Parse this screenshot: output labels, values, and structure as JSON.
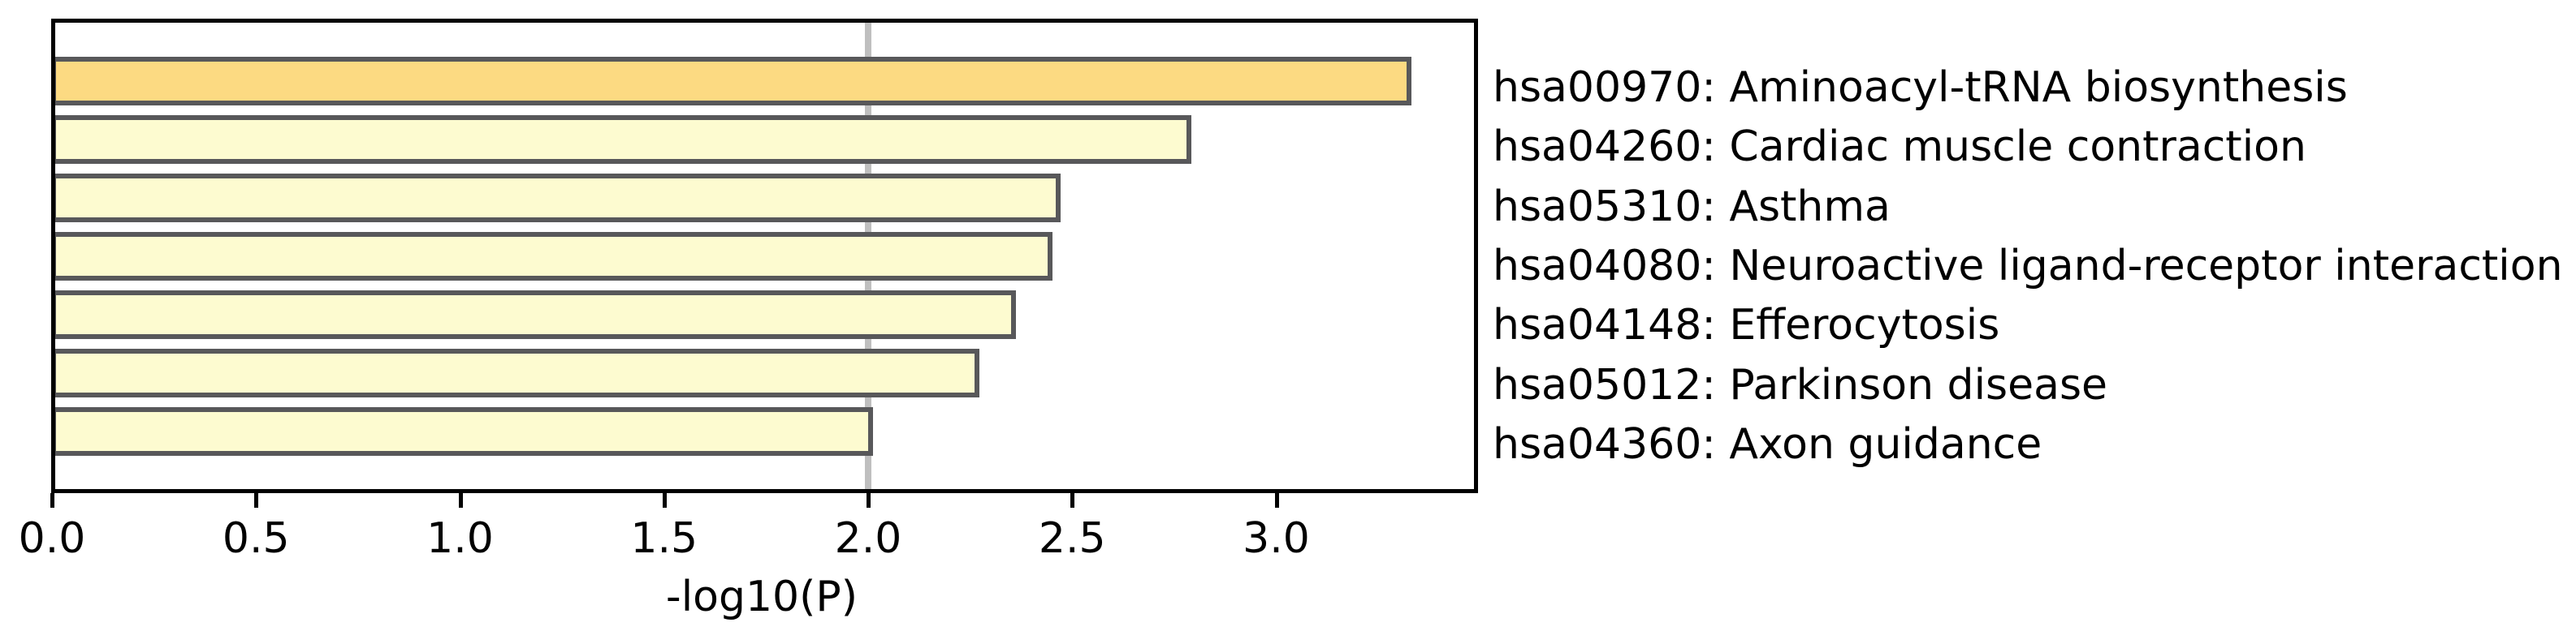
{
  "chart_data": {
    "type": "bar",
    "orientation": "horizontal",
    "title": "",
    "xlabel": "-log10(P)",
    "ylabel": "",
    "categories": [
      "hsa00970: Aminoacyl-tRNA biosynthesis",
      "hsa04260: Cardiac muscle contraction",
      "hsa05310: Asthma",
      "hsa04080: Neuroactive ligand-receptor interaction",
      "hsa04148: Efferocytosis",
      "hsa05012: Parkinson disease",
      "hsa04360: Axon guidance"
    ],
    "values": [
      3.33,
      2.79,
      2.47,
      2.45,
      2.36,
      2.27,
      2.01
    ],
    "xlim": [
      0,
      3.49
    ],
    "xticks": [
      0.0,
      0.5,
      1.0,
      1.5,
      2.0,
      2.5,
      3.0
    ],
    "xtick_labels": [
      "0.0",
      "0.5",
      "1.0",
      "1.5",
      "2.0",
      "2.5",
      "3.0"
    ],
    "threshold_line_x": 2.0,
    "grid": false,
    "legend": "none",
    "colors": {
      "highlight_bar_fill": "#fcda82",
      "bar_fill": "#fdfbd0",
      "bar_edge": "#58585a",
      "threshold_line": "#bfbfbf",
      "axis_spine": "#000000",
      "text": "#000000",
      "background": "#ffffff"
    }
  }
}
